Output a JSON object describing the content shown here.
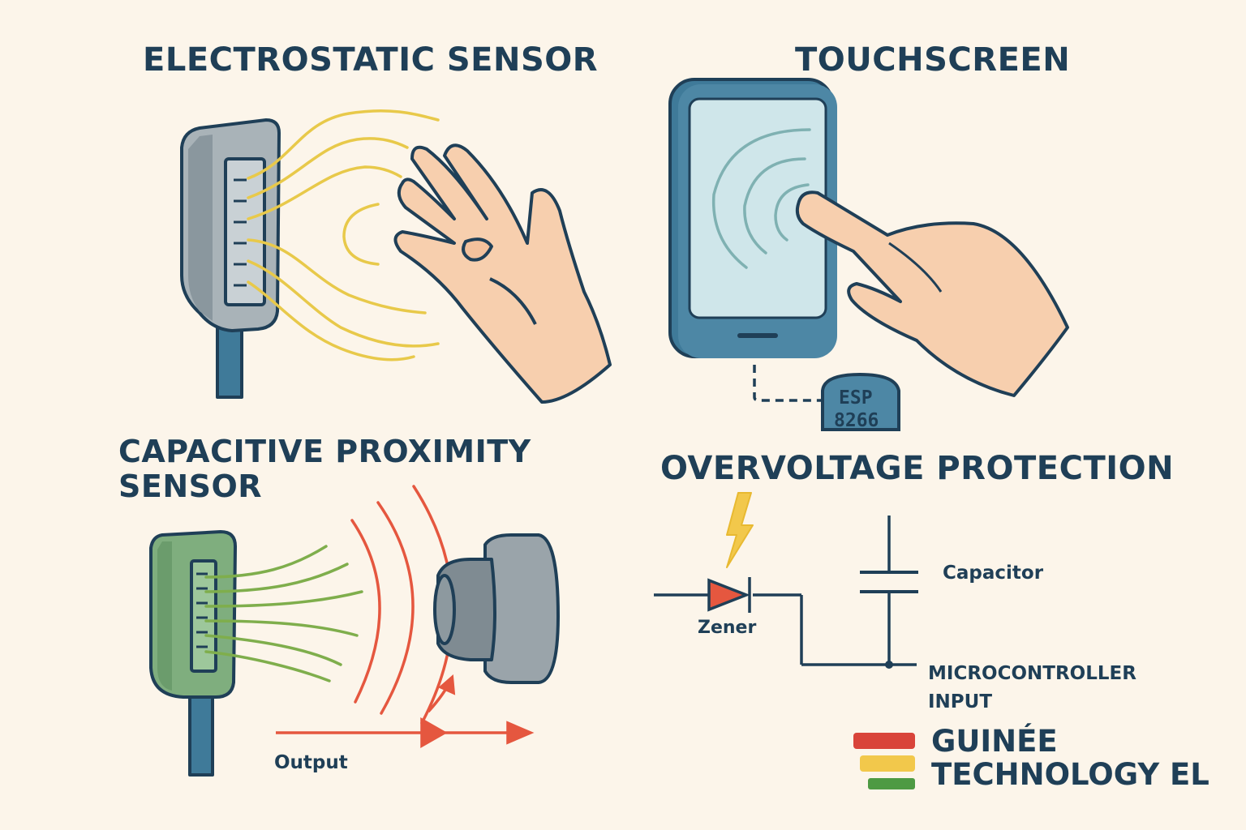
{
  "sections": {
    "electrostatic": {
      "title": "ELECTROSTATIC SENSOR"
    },
    "touchscreen": {
      "title": "TOUCHSCREEN",
      "chip_line1": "ESP",
      "chip_line2": "8266"
    },
    "capacitive": {
      "title_line1": "CAPACITIVE PROXIMITY",
      "title_line2": "SENSOR",
      "output_label": "Output"
    },
    "overvoltage": {
      "title": "OVERVOLTAGE PROTECTION",
      "capacitor_label": "Capacitor",
      "zener_label": "Zener",
      "mcu_line1": "MICROCONTROLLER",
      "mcu_line2": "INPUT"
    }
  },
  "brand": {
    "line1": "GUINÉE",
    "line2": "TECHNOLOGY EL",
    "stripe_colors": [
      "#d9443a",
      "#f2c84b",
      "#4e9a43"
    ]
  },
  "colors": {
    "background": "#fcf5ea",
    "ink": "#1f3f57",
    "field_yellow": "#e8c94a",
    "field_green": "#7fae4c",
    "field_red": "#e5573f",
    "skin": "#f7cfae",
    "screen": "#cfe6ea"
  },
  "icons": [
    "hand-icon",
    "finger-touch-icon",
    "lightning-icon",
    "zener-diode-icon",
    "capacitor-icon"
  ]
}
